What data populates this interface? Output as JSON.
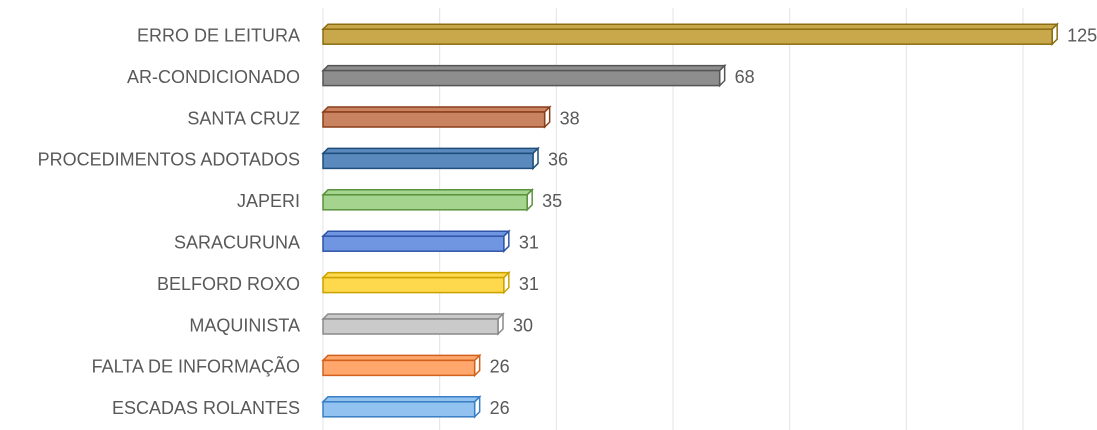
{
  "chart_data": {
    "type": "bar",
    "orientation": "horizontal",
    "categories": [
      "ERRO DE LEITURA",
      "AR-CONDICIONADO",
      "SANTA CRUZ",
      "PROCEDIMENTOS ADOTADOS",
      "JAPERI",
      "SARACURUNA",
      "BELFORD ROXO",
      "MAQUINISTA",
      "FALTA DE INFORMAÇÃO",
      "ESCADAS ROLANTES"
    ],
    "values": [
      125,
      68,
      38,
      36,
      35,
      31,
      31,
      30,
      26,
      26
    ],
    "colors": [
      "#c9a84c",
      "#8e8e8e",
      "#c98360",
      "#5a8abd",
      "#a4d48e",
      "#7096e2",
      "#ffd94d",
      "#cacaca",
      "#ffa76c",
      "#92c2f0"
    ],
    "edge_colors": [
      "#8a6d12",
      "#555555",
      "#8a3f1a",
      "#1f4e7a",
      "#5a9240",
      "#2f54a8",
      "#c9a200",
      "#8a8a8a",
      "#d0621e",
      "#3a7fc4"
    ],
    "xlim": [
      0,
      120
    ],
    "xticks": [
      0,
      20,
      40,
      60,
      80,
      100,
      120
    ],
    "grid": true
  }
}
